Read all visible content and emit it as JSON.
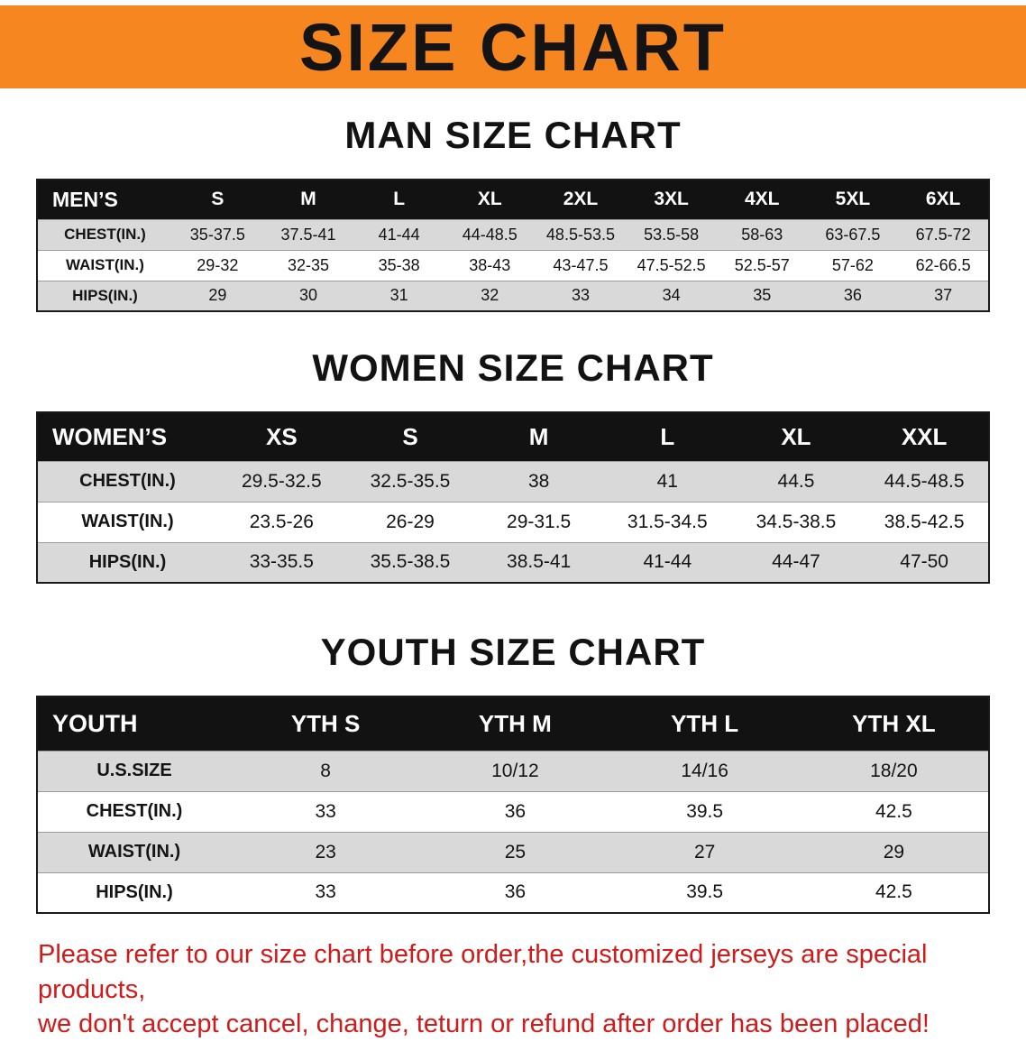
{
  "banner": {
    "title": "SIZE CHART",
    "bg_color": "#f6861f"
  },
  "sections": [
    {
      "heading": "MAN SIZE CHART",
      "table": {
        "header": [
          "MEN’S",
          "S",
          "M",
          "L",
          "XL",
          "2XL",
          "3XL",
          "4XL",
          "5XL",
          "6XL"
        ],
        "rows": [
          [
            "CHEST(IN.)",
            "35-37.5",
            "37.5-41",
            "41-44",
            "44-48.5",
            "48.5-53.5",
            "53.5-58",
            "58-63",
            "63-67.5",
            "67.5-72"
          ],
          [
            "WAIST(IN.)",
            "29-32",
            "32-35",
            "35-38",
            "38-43",
            "43-47.5",
            "47.5-52.5",
            "52.5-57",
            "57-62",
            "62-66.5"
          ],
          [
            "HIPS(IN.)",
            "29",
            "30",
            "31",
            "32",
            "33",
            "34",
            "35",
            "36",
            "37"
          ]
        ]
      }
    },
    {
      "heading": "WOMEN SIZE CHART",
      "table": {
        "header": [
          "WOMEN’S",
          "XS",
          "S",
          "M",
          "L",
          "XL",
          "XXL"
        ],
        "rows": [
          [
            "CHEST(IN.)",
            "29.5-32.5",
            "32.5-35.5",
            "38",
            "41",
            "44.5",
            "44.5-48.5"
          ],
          [
            "WAIST(IN.)",
            "23.5-26",
            "26-29",
            "29-31.5",
            "31.5-34.5",
            "34.5-38.5",
            "38.5-42.5"
          ],
          [
            "HIPS(IN.)",
            "33-35.5",
            "35.5-38.5",
            "38.5-41",
            "41-44",
            "44-47",
            "47-50"
          ]
        ]
      }
    },
    {
      "heading": "YOUTH SIZE CHART",
      "table": {
        "header": [
          "YOUTH",
          "YTH S",
          "YTH M",
          "YTH L",
          "YTH XL"
        ],
        "rows": [
          [
            "U.S.SIZE",
            "8",
            "10/12",
            "14/16",
            "18/20"
          ],
          [
            "CHEST(IN.)",
            "33",
            "36",
            "39.5",
            "42.5"
          ],
          [
            "WAIST(IN.)",
            "23",
            "25",
            "27",
            "29"
          ],
          [
            "HIPS(IN.)",
            "33",
            "36",
            "39.5",
            "42.5"
          ]
        ]
      }
    }
  ],
  "notice": {
    "line1": "Please refer to our size chart before order,the customized jerseys are special products,",
    "line2": "we don't accept cancel, change, teturn or refund after order has been placed!",
    "color": "#d11a1a"
  }
}
